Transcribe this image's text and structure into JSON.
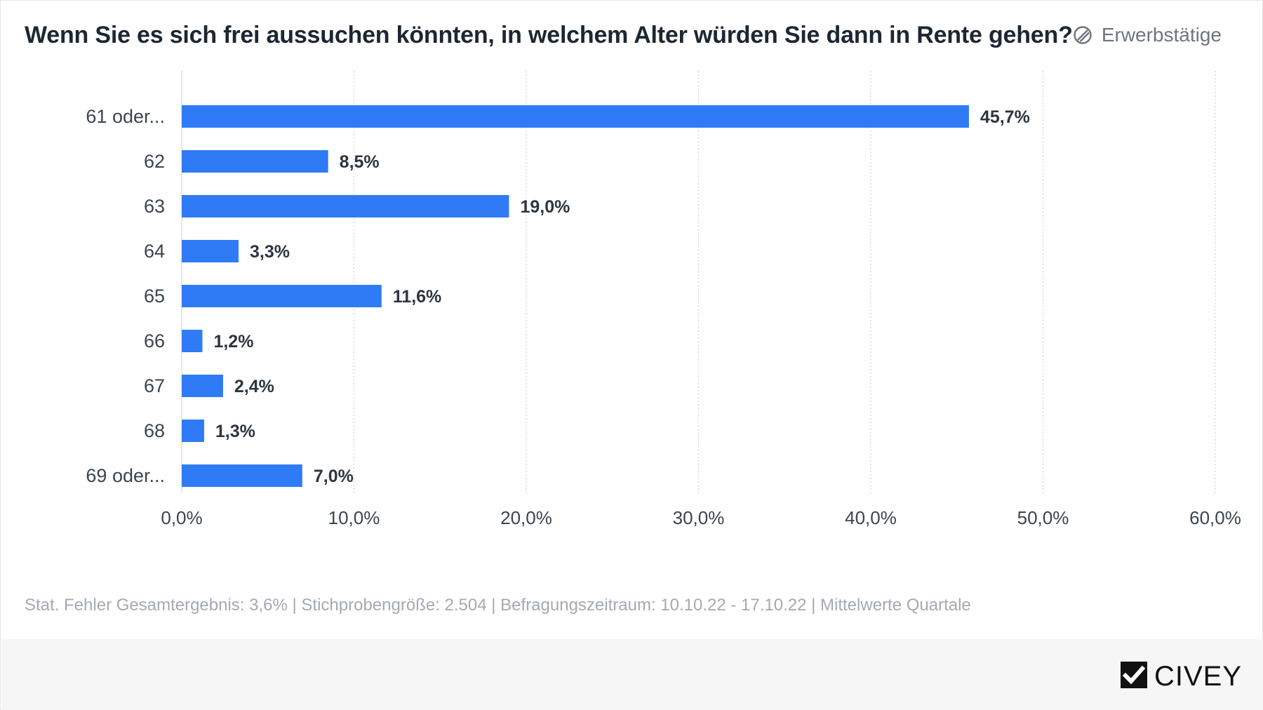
{
  "header": {
    "title": "Wenn Sie es sich frei aussuchen könnten, in welchem Alter würden Sie dann in Rente gehen?",
    "filter_label": "Erwerbstätige",
    "filter_icon": "ban-icon"
  },
  "chart_data": {
    "type": "bar",
    "orientation": "horizontal",
    "title": "Wenn Sie es sich frei aussuchen könnten, in welchem Alter würden Sie dann in Rente gehen?",
    "xlabel": "",
    "ylabel": "",
    "categories": [
      "61 oder...",
      "62",
      "63",
      "64",
      "65",
      "66",
      "67",
      "68",
      "69 oder..."
    ],
    "values": [
      45.7,
      8.5,
      19.0,
      3.3,
      11.6,
      1.2,
      2.4,
      1.3,
      7.0
    ],
    "value_labels": [
      "45,7%",
      "8,5%",
      "19,0%",
      "3,3%",
      "11,6%",
      "1,2%",
      "2,4%",
      "1,3%",
      "7,0%"
    ],
    "xlim": [
      0,
      60
    ],
    "xticks": [
      0,
      10,
      20,
      30,
      40,
      50,
      60
    ],
    "xtick_labels": [
      "0,0%",
      "10,0%",
      "20,0%",
      "30,0%",
      "40,0%",
      "50,0%",
      "60,0%"
    ],
    "grid": true,
    "bar_color": "#2f7bf5"
  },
  "footnote": "Stat. Fehler Gesamtergebnis: 3,6% | Stichprobengröße: 2.504 | Befragungszeitraum: 10.10.22 - 17.10.22 | Mittelwerte Quartale",
  "brand": {
    "name": "CIVEY",
    "logo_icon": "civey-logo-icon"
  }
}
